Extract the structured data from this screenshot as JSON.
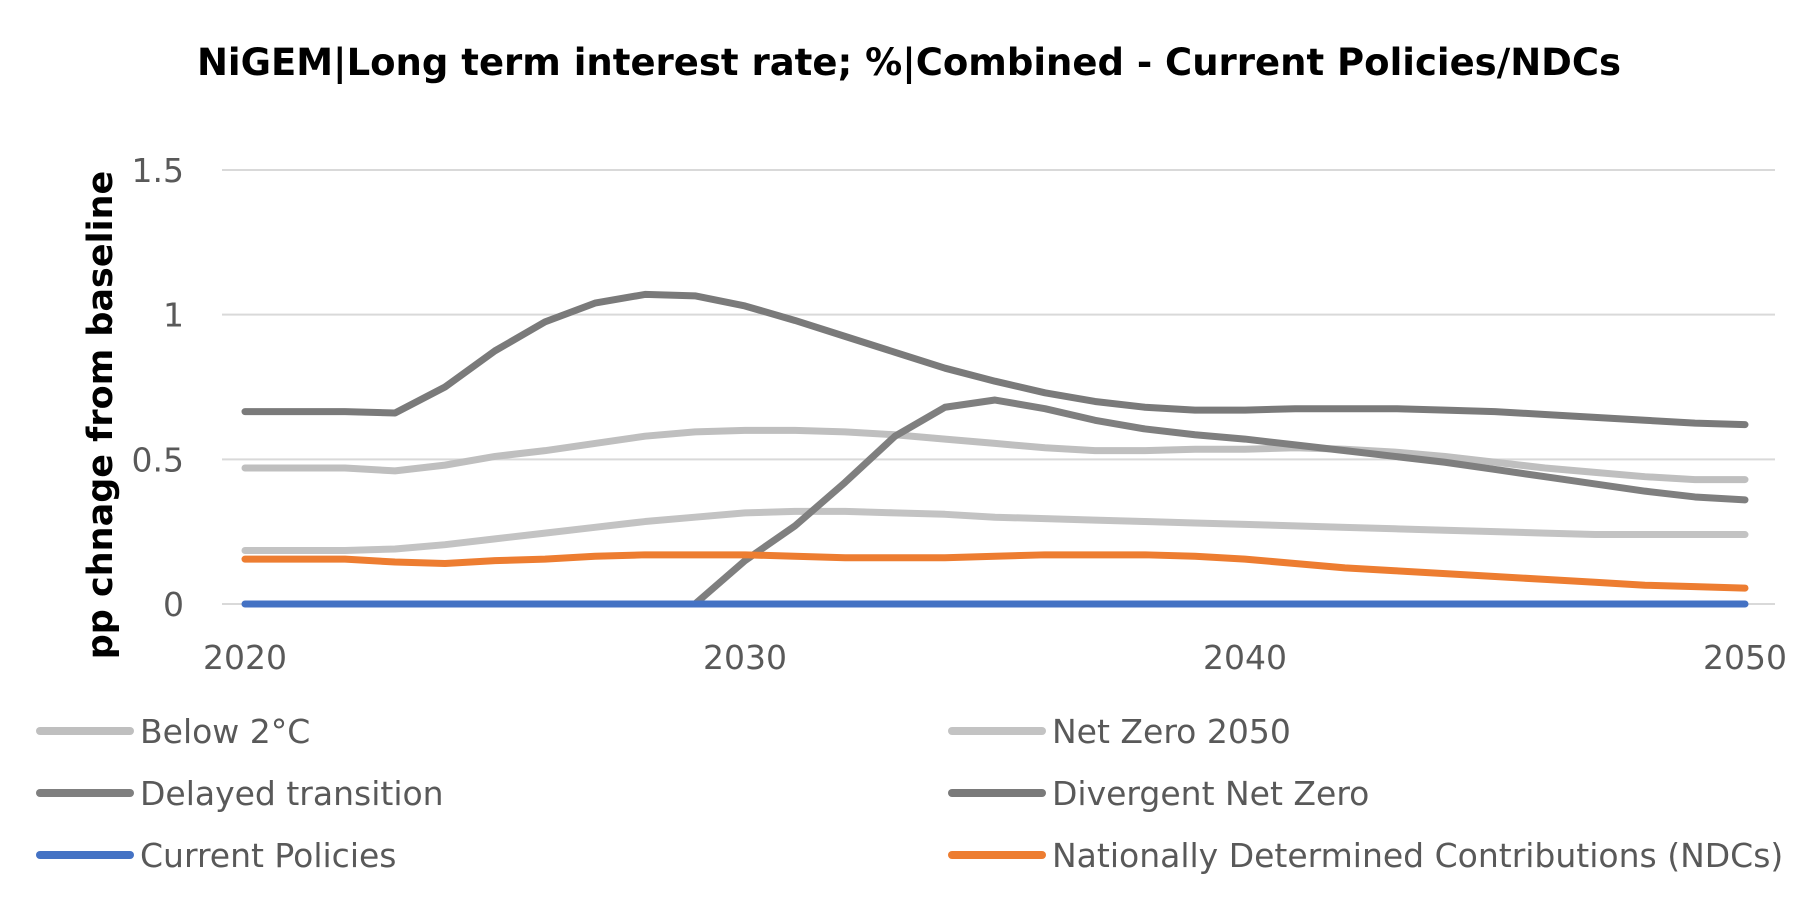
{
  "chart_data": {
    "type": "line",
    "title": "NiGEM|Long term interest rate; %|Combined - Current Policies/NDCs",
    "xlabel": "",
    "ylabel": "pp chnage from baseline",
    "xlim": [
      2020,
      2050
    ],
    "ylim": [
      0,
      1.5
    ],
    "x_ticks": [
      "2020",
      "2030",
      "2040",
      "2050"
    ],
    "y_ticks": [
      "0",
      "0.5",
      "1",
      "1.5"
    ],
    "grid": true,
    "legend_position": "bottom",
    "x": [
      2020,
      2021,
      2022,
      2023,
      2024,
      2025,
      2026,
      2027,
      2028,
      2029,
      2030,
      2031,
      2032,
      2033,
      2034,
      2035,
      2036,
      2037,
      2038,
      2039,
      2040,
      2041,
      2042,
      2043,
      2044,
      2045,
      2046,
      2047,
      2048,
      2049,
      2050
    ],
    "series": [
      {
        "name": "Below 2°C",
        "color": "#bfbfbf",
        "values": [
          0.47,
          0.47,
          0.47,
          0.46,
          0.48,
          0.51,
          0.53,
          0.555,
          0.58,
          0.595,
          0.6,
          0.6,
          0.595,
          0.585,
          0.57,
          0.555,
          0.54,
          0.53,
          0.53,
          0.535,
          0.535,
          0.54,
          0.535,
          0.525,
          0.51,
          0.49,
          0.47,
          0.455,
          0.44,
          0.43,
          0.43
        ]
      },
      {
        "name": "Net Zero 2050",
        "color": "#c3c3c3",
        "values": [
          0.185,
          0.185,
          0.185,
          0.19,
          0.205,
          0.225,
          0.245,
          0.265,
          0.285,
          0.3,
          0.315,
          0.32,
          0.32,
          0.315,
          0.31,
          0.3,
          0.295,
          0.29,
          0.285,
          0.28,
          0.275,
          0.27,
          0.265,
          0.26,
          0.255,
          0.25,
          0.245,
          0.24,
          0.24,
          0.24,
          0.24
        ]
      },
      {
        "name": "Delayed transition",
        "color": "#7f7f7f",
        "values": [
          0,
          0,
          0,
          0,
          0,
          0,
          0,
          0,
          0,
          0,
          0.15,
          0.27,
          0.42,
          0.58,
          0.68,
          0.705,
          0.675,
          0.635,
          0.605,
          0.585,
          0.57,
          0.55,
          0.53,
          0.51,
          0.49,
          0.465,
          0.44,
          0.415,
          0.39,
          0.37,
          0.36
        ]
      },
      {
        "name": "Divergent Net Zero",
        "color": "#7a7a7a",
        "values": [
          0.665,
          0.665,
          0.665,
          0.66,
          0.75,
          0.875,
          0.975,
          1.04,
          1.07,
          1.065,
          1.03,
          0.98,
          0.925,
          0.87,
          0.815,
          0.77,
          0.73,
          0.7,
          0.68,
          0.67,
          0.67,
          0.675,
          0.675,
          0.675,
          0.67,
          0.665,
          0.655,
          0.645,
          0.635,
          0.625,
          0.62
        ]
      },
      {
        "name": "Current Policies",
        "color": "#4472c4",
        "values": [
          0,
          0,
          0,
          0,
          0,
          0,
          0,
          0,
          0,
          0,
          0,
          0,
          0,
          0,
          0,
          0,
          0,
          0,
          0,
          0,
          0,
          0,
          0,
          0,
          0,
          0,
          0,
          0,
          0,
          0,
          0
        ]
      },
      {
        "name": "Nationally Determined Contributions (NDCs)",
        "color": "#ed7d31",
        "values": [
          0.155,
          0.155,
          0.155,
          0.145,
          0.14,
          0.15,
          0.155,
          0.165,
          0.17,
          0.17,
          0.17,
          0.165,
          0.16,
          0.16,
          0.16,
          0.165,
          0.17,
          0.17,
          0.17,
          0.165,
          0.155,
          0.14,
          0.125,
          0.115,
          0.105,
          0.095,
          0.085,
          0.075,
          0.065,
          0.06,
          0.055
        ]
      }
    ]
  }
}
